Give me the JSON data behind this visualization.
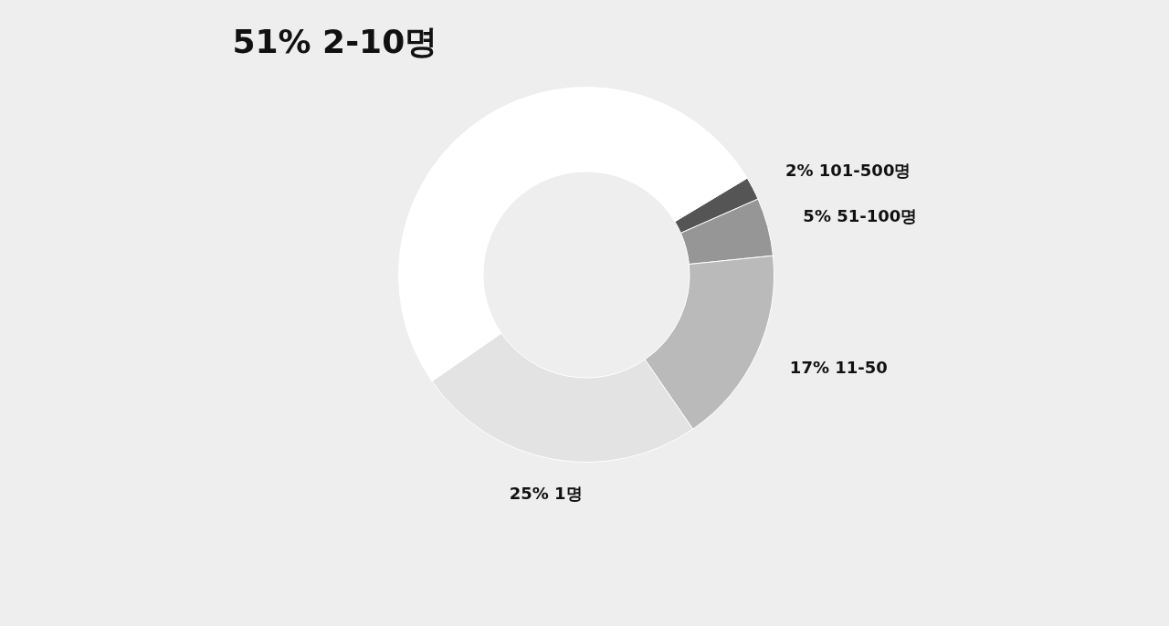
{
  "chart_data": {
    "type": "donut",
    "categories": [
      "101-500명",
      "51-100명",
      "11-50",
      "1명",
      "2-10명"
    ],
    "values": [
      2,
      5,
      17,
      25,
      51
    ],
    "colors": [
      "#555555",
      "#969696",
      "#bababa",
      "#e3e3e3",
      "#ffffff"
    ],
    "value_labels": [
      "2%",
      "5%",
      "17%",
      "25%",
      "51%"
    ],
    "legend": false
  }
}
